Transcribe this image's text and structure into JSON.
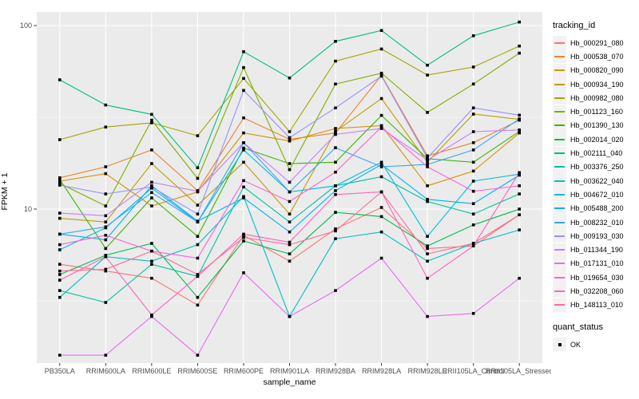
{
  "chart_data": {
    "type": "line",
    "title": "",
    "xlabel": "sample_name",
    "ylabel": "FPKM + 1",
    "y_scale": "log10",
    "ylim": [
      1.45,
      118
    ],
    "y_ticks": [
      {
        "value": 10,
        "label": "10"
      },
      {
        "value": 100,
        "label": "100"
      }
    ],
    "y_minor_gridlines": [
      3.162,
      31.62
    ],
    "grid": true,
    "panel_bg": "#EBEBEB",
    "grid_color": "#FFFFFF",
    "marker": "black-square",
    "legend_position": "right",
    "categories": [
      "PB350LA",
      "RRIM600LA",
      "RRIM600LE",
      "RRIM600SE",
      "RRIM600PE",
      "RRIM901LA",
      "RRIM928BA",
      "RRIM928LA",
      "RRIM928LE",
      "RRII105LA_Control",
      "RRII105LA_Stressed"
    ],
    "series": [
      {
        "name": "Hb_000291_080",
        "color": "#F8766D",
        "values": [
          5.0,
          4.6,
          4.2,
          3.0,
          7.2,
          5.2,
          7.8,
          10.2,
          6.1,
          6.3,
          9.3
        ]
      },
      {
        "name": "Hb_000538_070",
        "color": "#EA8331",
        "values": [
          14.8,
          17.0,
          21.0,
          12.6,
          31.4,
          24.0,
          26.0,
          53.5,
          19.5,
          23.0,
          30.5
        ]
      },
      {
        "name": "Hb_000820_090",
        "color": "#D89000",
        "values": [
          14.2,
          15.6,
          10.4,
          12.4,
          26.0,
          23.5,
          27.5,
          28.5,
          13.4,
          16.1,
          26.0
        ]
      },
      {
        "name": "Hb_000934_190",
        "color": "#C09B00",
        "values": [
          8.9,
          8.5,
          17.7,
          10.5,
          18.0,
          9.4,
          26.5,
          40.0,
          18.0,
          32.9,
          30.8
        ]
      },
      {
        "name": "Hb_000982_080",
        "color": "#A3A500",
        "values": [
          23.9,
          28.0,
          29.5,
          25.1,
          51.5,
          26.4,
          64.0,
          74.5,
          53.7,
          59.4,
          77.3
        ]
      },
      {
        "name": "Hb_001123_160",
        "color": "#7CAE00",
        "values": [
          13.8,
          10.4,
          30.5,
          14.7,
          59.0,
          16.4,
          48.0,
          55.0,
          33.6,
          48.0,
          70.7
        ]
      },
      {
        "name": "Hb_001390_130",
        "color": "#39B600",
        "values": [
          14.5,
          6.1,
          11.5,
          7.1,
          21.5,
          17.7,
          18.0,
          32.4,
          18.8,
          18.0,
          26.5
        ]
      },
      {
        "name": "Hb_002014_020",
        "color": "#00BB4E",
        "values": [
          4.4,
          5.6,
          6.5,
          3.3,
          6.7,
          5.7,
          9.6,
          9.1,
          6.3,
          8.2,
          10.0
        ]
      },
      {
        "name": "Hb_002111_040",
        "color": "#00BF7D",
        "values": [
          50.6,
          36.9,
          32.8,
          16.8,
          72.0,
          51.8,
          82.0,
          94.0,
          60.8,
          88.0,
          104.5
        ]
      },
      {
        "name": "Hb_003376_250",
        "color": "#00C1A3",
        "values": [
          3.6,
          3.1,
          5.0,
          4.3,
          13.2,
          8.5,
          13.4,
          15.0,
          11.0,
          9.4,
          12.1
        ]
      },
      {
        "name": "Hb_003622_040",
        "color": "#00BFC4",
        "values": [
          3.3,
          5.5,
          5.2,
          6.4,
          11.7,
          2.6,
          6.9,
          7.5,
          5.2,
          6.5,
          7.7
        ]
      },
      {
        "name": "Hb_004672_010",
        "color": "#00BAE0",
        "values": [
          6.0,
          7.9,
          13.0,
          8.5,
          21.0,
          12.4,
          13.4,
          18.0,
          7.1,
          14.2,
          15.5
        ]
      },
      {
        "name": "Hb_005488_200",
        "color": "#00B0F6",
        "values": [
          7.3,
          6.8,
          13.4,
          8.6,
          11.5,
          7.5,
          12.6,
          17.5,
          11.3,
          10.7,
          15.3
        ]
      },
      {
        "name": "Hb_008232_010",
        "color": "#35A2FF",
        "values": [
          7.3,
          8.0,
          12.3,
          8.5,
          23.0,
          12.4,
          21.6,
          17.0,
          17.5,
          21.0,
          31.0
        ]
      },
      {
        "name": "Hb_009193_030",
        "color": "#9590FF",
        "values": [
          13.5,
          12.1,
          13.2,
          9.4,
          44.3,
          24.5,
          35.6,
          53.0,
          19.0,
          35.6,
          32.5
        ]
      },
      {
        "name": "Hb_011344_190",
        "color": "#C77CFF",
        "values": [
          9.5,
          9.2,
          14.0,
          12.5,
          23.0,
          14.0,
          25.5,
          27.5,
          18.5,
          26.4,
          27.0
        ]
      },
      {
        "name": "Hb_017131_010",
        "color": "#E76BF3",
        "values": [
          1.6,
          1.6,
          2.6,
          1.6,
          4.5,
          2.6,
          3.6,
          5.4,
          2.6,
          2.7,
          4.2
        ]
      },
      {
        "name": "Hb_019654_030",
        "color": "#FA62DB",
        "values": [
          6.4,
          7.2,
          5.9,
          5.4,
          14.3,
          11.0,
          15.9,
          28.0,
          17.0,
          12.5,
          13.4
        ]
      },
      {
        "name": "Hb_032208_060",
        "color": "#FF62BC",
        "values": [
          4.1,
          5.5,
          2.65,
          4.3,
          7.3,
          6.6,
          12.0,
          12.4,
          4.2,
          6.3,
          15.8
        ]
      },
      {
        "name": "Hb_148113_010",
        "color": "#FF6A98",
        "values": [
          4.6,
          4.7,
          5.9,
          4.4,
          7.0,
          6.4,
          7.6,
          12.4,
          5.7,
          6.5,
          9.3
        ]
      }
    ]
  },
  "legend": {
    "tracking_title": "tracking_id",
    "quant_title": "quant_status",
    "quant_items": [
      {
        "label": "OK",
        "marker": "black-square"
      }
    ]
  },
  "colors": {
    "panel_background": "#EBEBEB",
    "gridline": "#FFFFFF",
    "tick_label": "#4D4D4D",
    "axis_text": "#000000",
    "marker": "#000000"
  }
}
